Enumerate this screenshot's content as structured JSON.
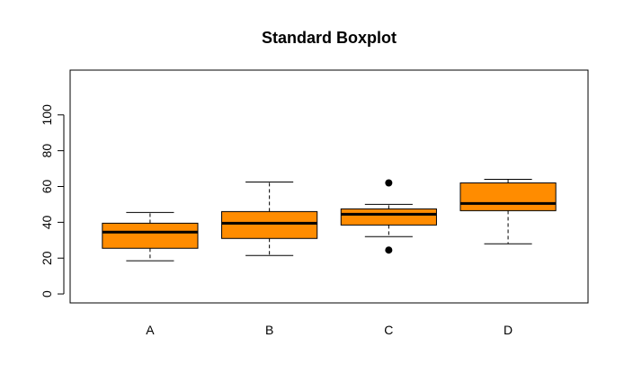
{
  "chart_data": {
    "type": "boxplot",
    "title": "Standard Boxplot",
    "xlabel": "",
    "ylabel": "",
    "ylim": [
      -5,
      125
    ],
    "yticks": [
      0,
      20,
      40,
      60,
      80,
      100
    ],
    "grid": false,
    "legend": "none",
    "colors": {
      "box_fill": "#FF8C00",
      "stroke": "#000000",
      "background": "#FFFFFF"
    },
    "categories": [
      "A",
      "B",
      "C",
      "D"
    ],
    "boxes": [
      {
        "name": "A",
        "whisker_low": 18.5,
        "q1": 25.5,
        "median": 34.5,
        "q3": 39.5,
        "whisker_high": 45.5,
        "outliers": []
      },
      {
        "name": "B",
        "whisker_low": 21.5,
        "q1": 31.0,
        "median": 39.5,
        "q3": 46.0,
        "whisker_high": 62.5,
        "outliers": []
      },
      {
        "name": "C",
        "whisker_low": 32.0,
        "q1": 38.5,
        "median": 44.5,
        "q3": 47.5,
        "whisker_high": 50.0,
        "outliers": [
          62.0,
          24.5
        ]
      },
      {
        "name": "D",
        "whisker_low": 28.0,
        "q1": 46.5,
        "median": 50.5,
        "q3": 62.0,
        "whisker_high": 64.0,
        "outliers": []
      }
    ]
  }
}
